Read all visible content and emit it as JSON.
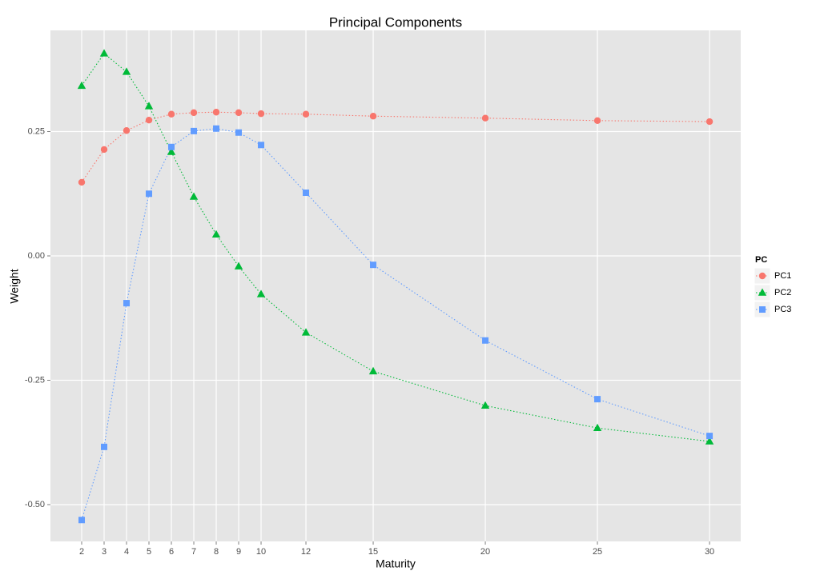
{
  "chart_data": {
    "type": "line",
    "title": "Principal Components",
    "x_label": "Maturity",
    "y_label": "Weight",
    "x": [
      2,
      3,
      4,
      5,
      6,
      7,
      8,
      9,
      10,
      12,
      15,
      20,
      25,
      30
    ],
    "xlim": [
      0.607,
      31.39
    ],
    "ylim": [
      -0.574,
      0.4534
    ],
    "xticks": [
      2,
      3,
      4,
      5,
      6,
      7,
      8,
      9,
      10,
      12,
      15,
      20,
      25,
      30
    ],
    "yticks": [
      {
        "value": -0.5,
        "label": "-0.50"
      },
      {
        "value": -0.25,
        "label": "-0.25"
      },
      {
        "value": 0,
        "label": "0.00"
      },
      {
        "value": 0.25,
        "label": "0.25"
      }
    ],
    "grid": true,
    "legend_title": "PC",
    "legend_position": "right",
    "series": [
      {
        "name": "PC1",
        "color": "#f8766d",
        "shape": "circle",
        "values": [
          0.148,
          0.214,
          0.252,
          0.273,
          0.285,
          0.288,
          0.289,
          0.288,
          0.286,
          0.285,
          0.281,
          0.277,
          0.272,
          0.27
        ]
      },
      {
        "name": "PC2",
        "color": "#00ba38",
        "shape": "triangle",
        "values": [
          0.342,
          0.407,
          0.37,
          0.301,
          0.209,
          0.119,
          0.043,
          -0.021,
          -0.077,
          -0.154,
          -0.232,
          -0.301,
          -0.346,
          -0.373
        ]
      },
      {
        "name": "PC3",
        "color": "#619cff",
        "shape": "square",
        "values": [
          -0.531,
          -0.384,
          -0.095,
          0.125,
          0.219,
          0.251,
          0.256,
          0.248,
          0.223,
          0.127,
          -0.018,
          -0.17,
          -0.288,
          -0.362
        ]
      }
    ]
  }
}
